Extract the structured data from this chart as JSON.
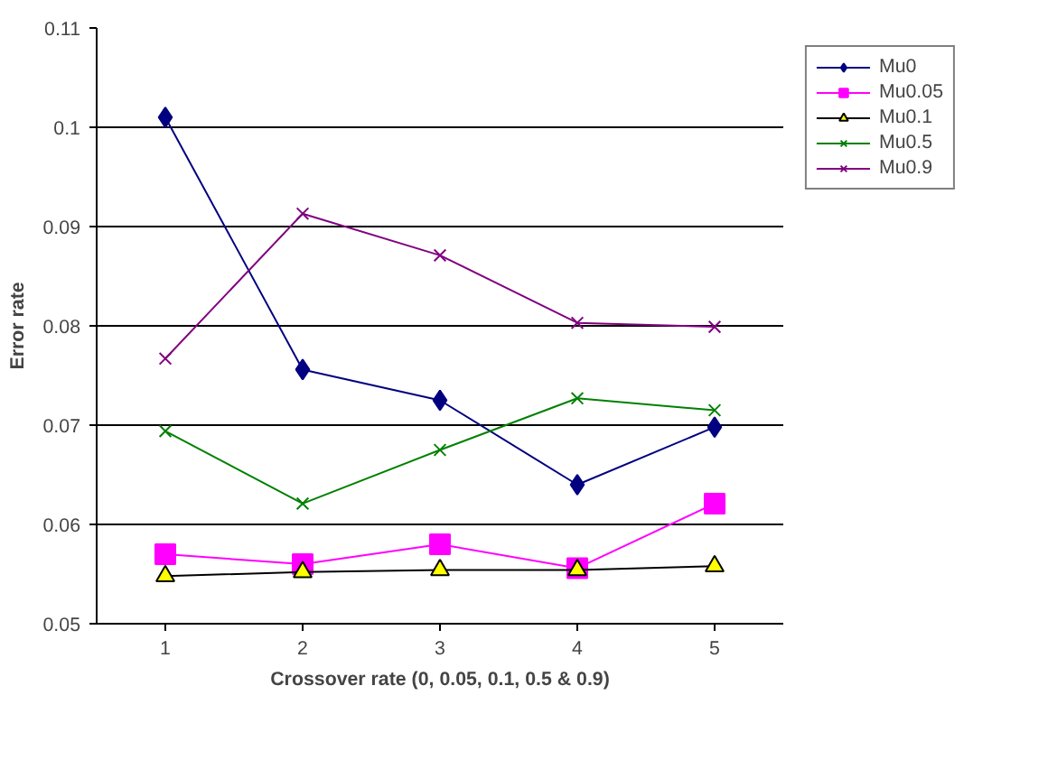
{
  "chart_data": {
    "type": "line",
    "xlabel": "Crossover rate (0, 0.05, 0.1, 0.5 & 0.9)",
    "ylabel": "Error rate",
    "categories": [
      "1",
      "2",
      "3",
      "4",
      "5"
    ],
    "series": [
      {
        "name": "Mu0",
        "color": "#000080",
        "marker": "diamond",
        "values": [
          0.101,
          0.0756,
          0.0725,
          0.064,
          0.0698
        ]
      },
      {
        "name": "Mu0.05",
        "color": "#ff00ff",
        "marker": "square",
        "values": [
          0.057,
          0.056,
          0.058,
          0.0556,
          0.0621
        ]
      },
      {
        "name": "Mu0.1",
        "color": "#000000",
        "marker": "triangle",
        "colors": [
          "#ffff00",
          "#ffff00",
          "#ffff00",
          "#ffff00",
          "#ffff00"
        ],
        "values": [
          0.0548,
          0.0552,
          0.0554,
          0.0554,
          0.0558
        ]
      },
      {
        "name": "Mu0.5",
        "color": "#008000",
        "marker": "cross",
        "values": [
          0.0694,
          0.0621,
          0.0675,
          0.0727,
          0.0715
        ]
      },
      {
        "name": "Mu0.9",
        "color": "#800080",
        "marker": "cross",
        "values": [
          0.0767,
          0.0913,
          0.0871,
          0.0803,
          0.0799
        ]
      }
    ],
    "ylim": [
      0.05,
      0.11
    ],
    "yticks": [
      0.05,
      0.06,
      0.07,
      0.08,
      0.09,
      0.1,
      0.11
    ],
    "grid": "y",
    "legend": "top right"
  }
}
